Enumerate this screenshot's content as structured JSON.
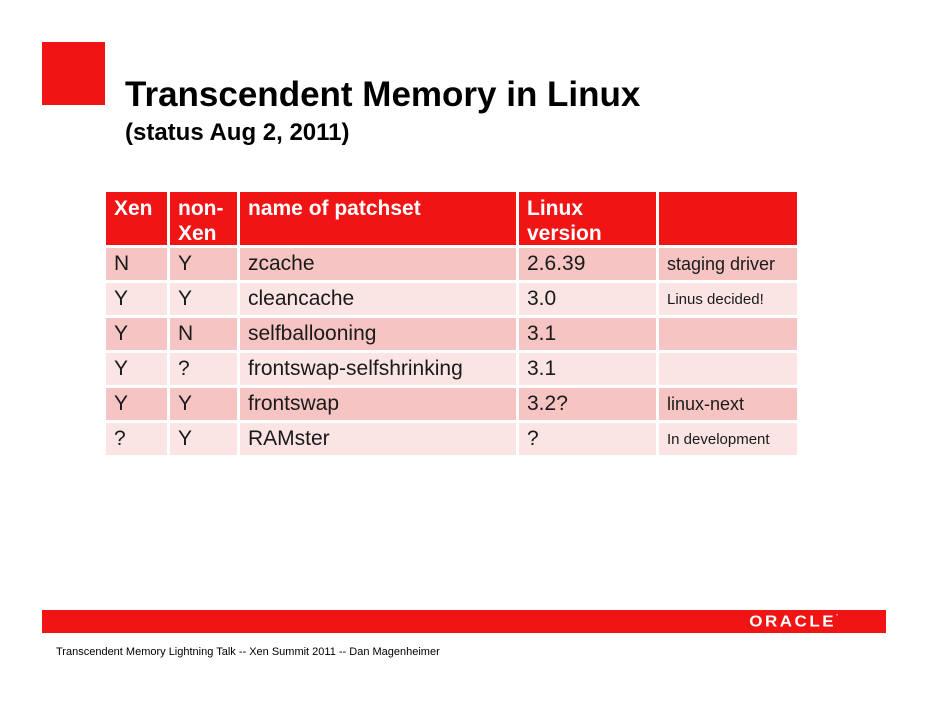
{
  "slide": {
    "title": "Transcendent Memory in Linux",
    "subtitle": "(status Aug 2, 2011)",
    "footer_note": "Transcendent Memory Lightning Talk -- Xen Summit 2011 -- Dan Magenheimer",
    "brand": {
      "name": "ORACLE",
      "mark": "’"
    }
  },
  "colors": {
    "accent_red": "#F01414",
    "row_dark": "#F5C4C3",
    "row_light": "#FBE5E4",
    "header_text": "#FFFFFF",
    "body_text": "#1A1A1A"
  },
  "table": {
    "columns": [
      "Xen",
      "non-Xen",
      "name of patchset",
      "Linux version",
      ""
    ],
    "rows": [
      {
        "xen": "N",
        "non_xen": "Y",
        "patchset": "zcache",
        "linux_version": "2.6.39",
        "note": "staging driver"
      },
      {
        "xen": "Y",
        "non_xen": "Y",
        "patchset": "cleancache",
        "linux_version": "3.0",
        "note": "Linus decided!"
      },
      {
        "xen": "Y",
        "non_xen": "N",
        "patchset": "selfballooning",
        "linux_version": "3.1",
        "note": ""
      },
      {
        "xen": "Y",
        "non_xen": "?",
        "patchset": "frontswap-selfshrinking",
        "linux_version": "3.1",
        "note": ""
      },
      {
        "xen": "Y",
        "non_xen": "Y",
        "patchset": "frontswap",
        "linux_version": "3.2?",
        "note": "linux-next"
      },
      {
        "xen": "?",
        "non_xen": "Y",
        "patchset": "RAMster",
        "linux_version": "?",
        "note": "In development"
      }
    ]
  }
}
